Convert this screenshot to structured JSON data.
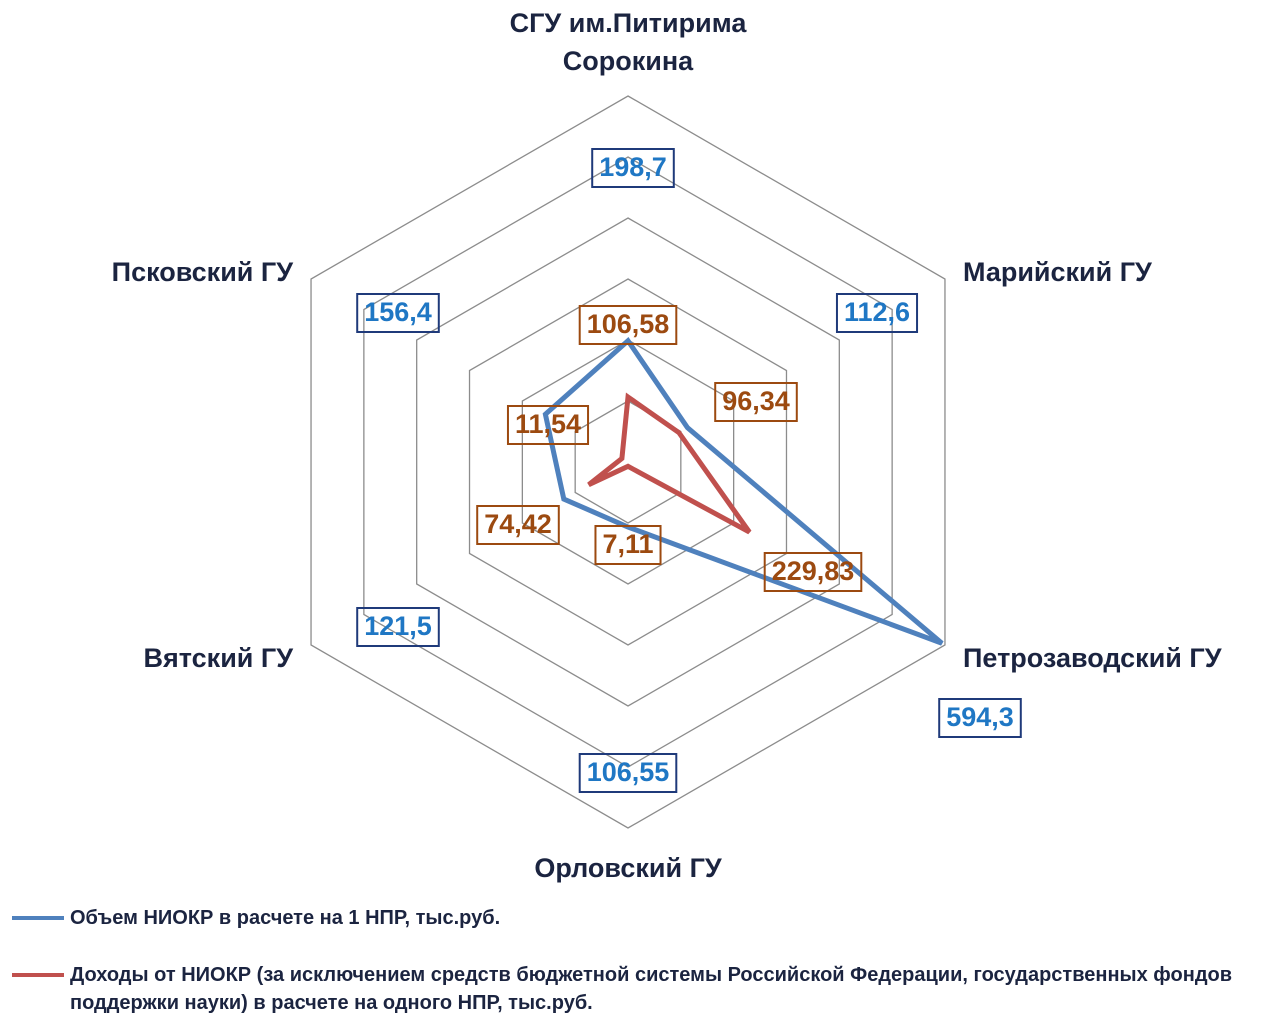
{
  "chart_data": {
    "type": "radar",
    "categories": [
      "СГУ им.Питирима Сорокина",
      "Марийский ГУ",
      "Петрозаводский ГУ",
      "Орловский ГУ",
      "Вятский ГУ",
      "Псковский ГУ"
    ],
    "ylim": [
      0,
      600
    ],
    "yticks": [
      0,
      100,
      200,
      300,
      400,
      500,
      600
    ],
    "grid": true,
    "series": [
      {
        "name": "Объем НИОКР в расчете на 1 НПР, тыс.руб.",
        "color": "#4f81bd",
        "label_color": "#1f77c4",
        "box_color": "#1f3a7a",
        "values": [
          198.7,
          112.6,
          594.3,
          106.55,
          121.5,
          156.4
        ],
        "value_labels": [
          "198,7",
          "112,6",
          "594,3",
          "106,55",
          "121,5",
          "156,4"
        ]
      },
      {
        "name": "Доходы от НИОКР (за исключением средств бюджетной системы Российской Федерации, государственных фондов поддержки науки) в расчете на одного НПР, тыс.руб.",
        "color": "#c0504d",
        "label_color": "#9c4a10",
        "box_color": "#9c4a10",
        "values": [
          106.58,
          96.34,
          229.83,
          7.11,
          74.42,
          11.54
        ],
        "value_labels": [
          "106,58",
          "96,34",
          "229,83",
          "7,11",
          "74,42",
          "11,54"
        ]
      }
    ]
  }
}
